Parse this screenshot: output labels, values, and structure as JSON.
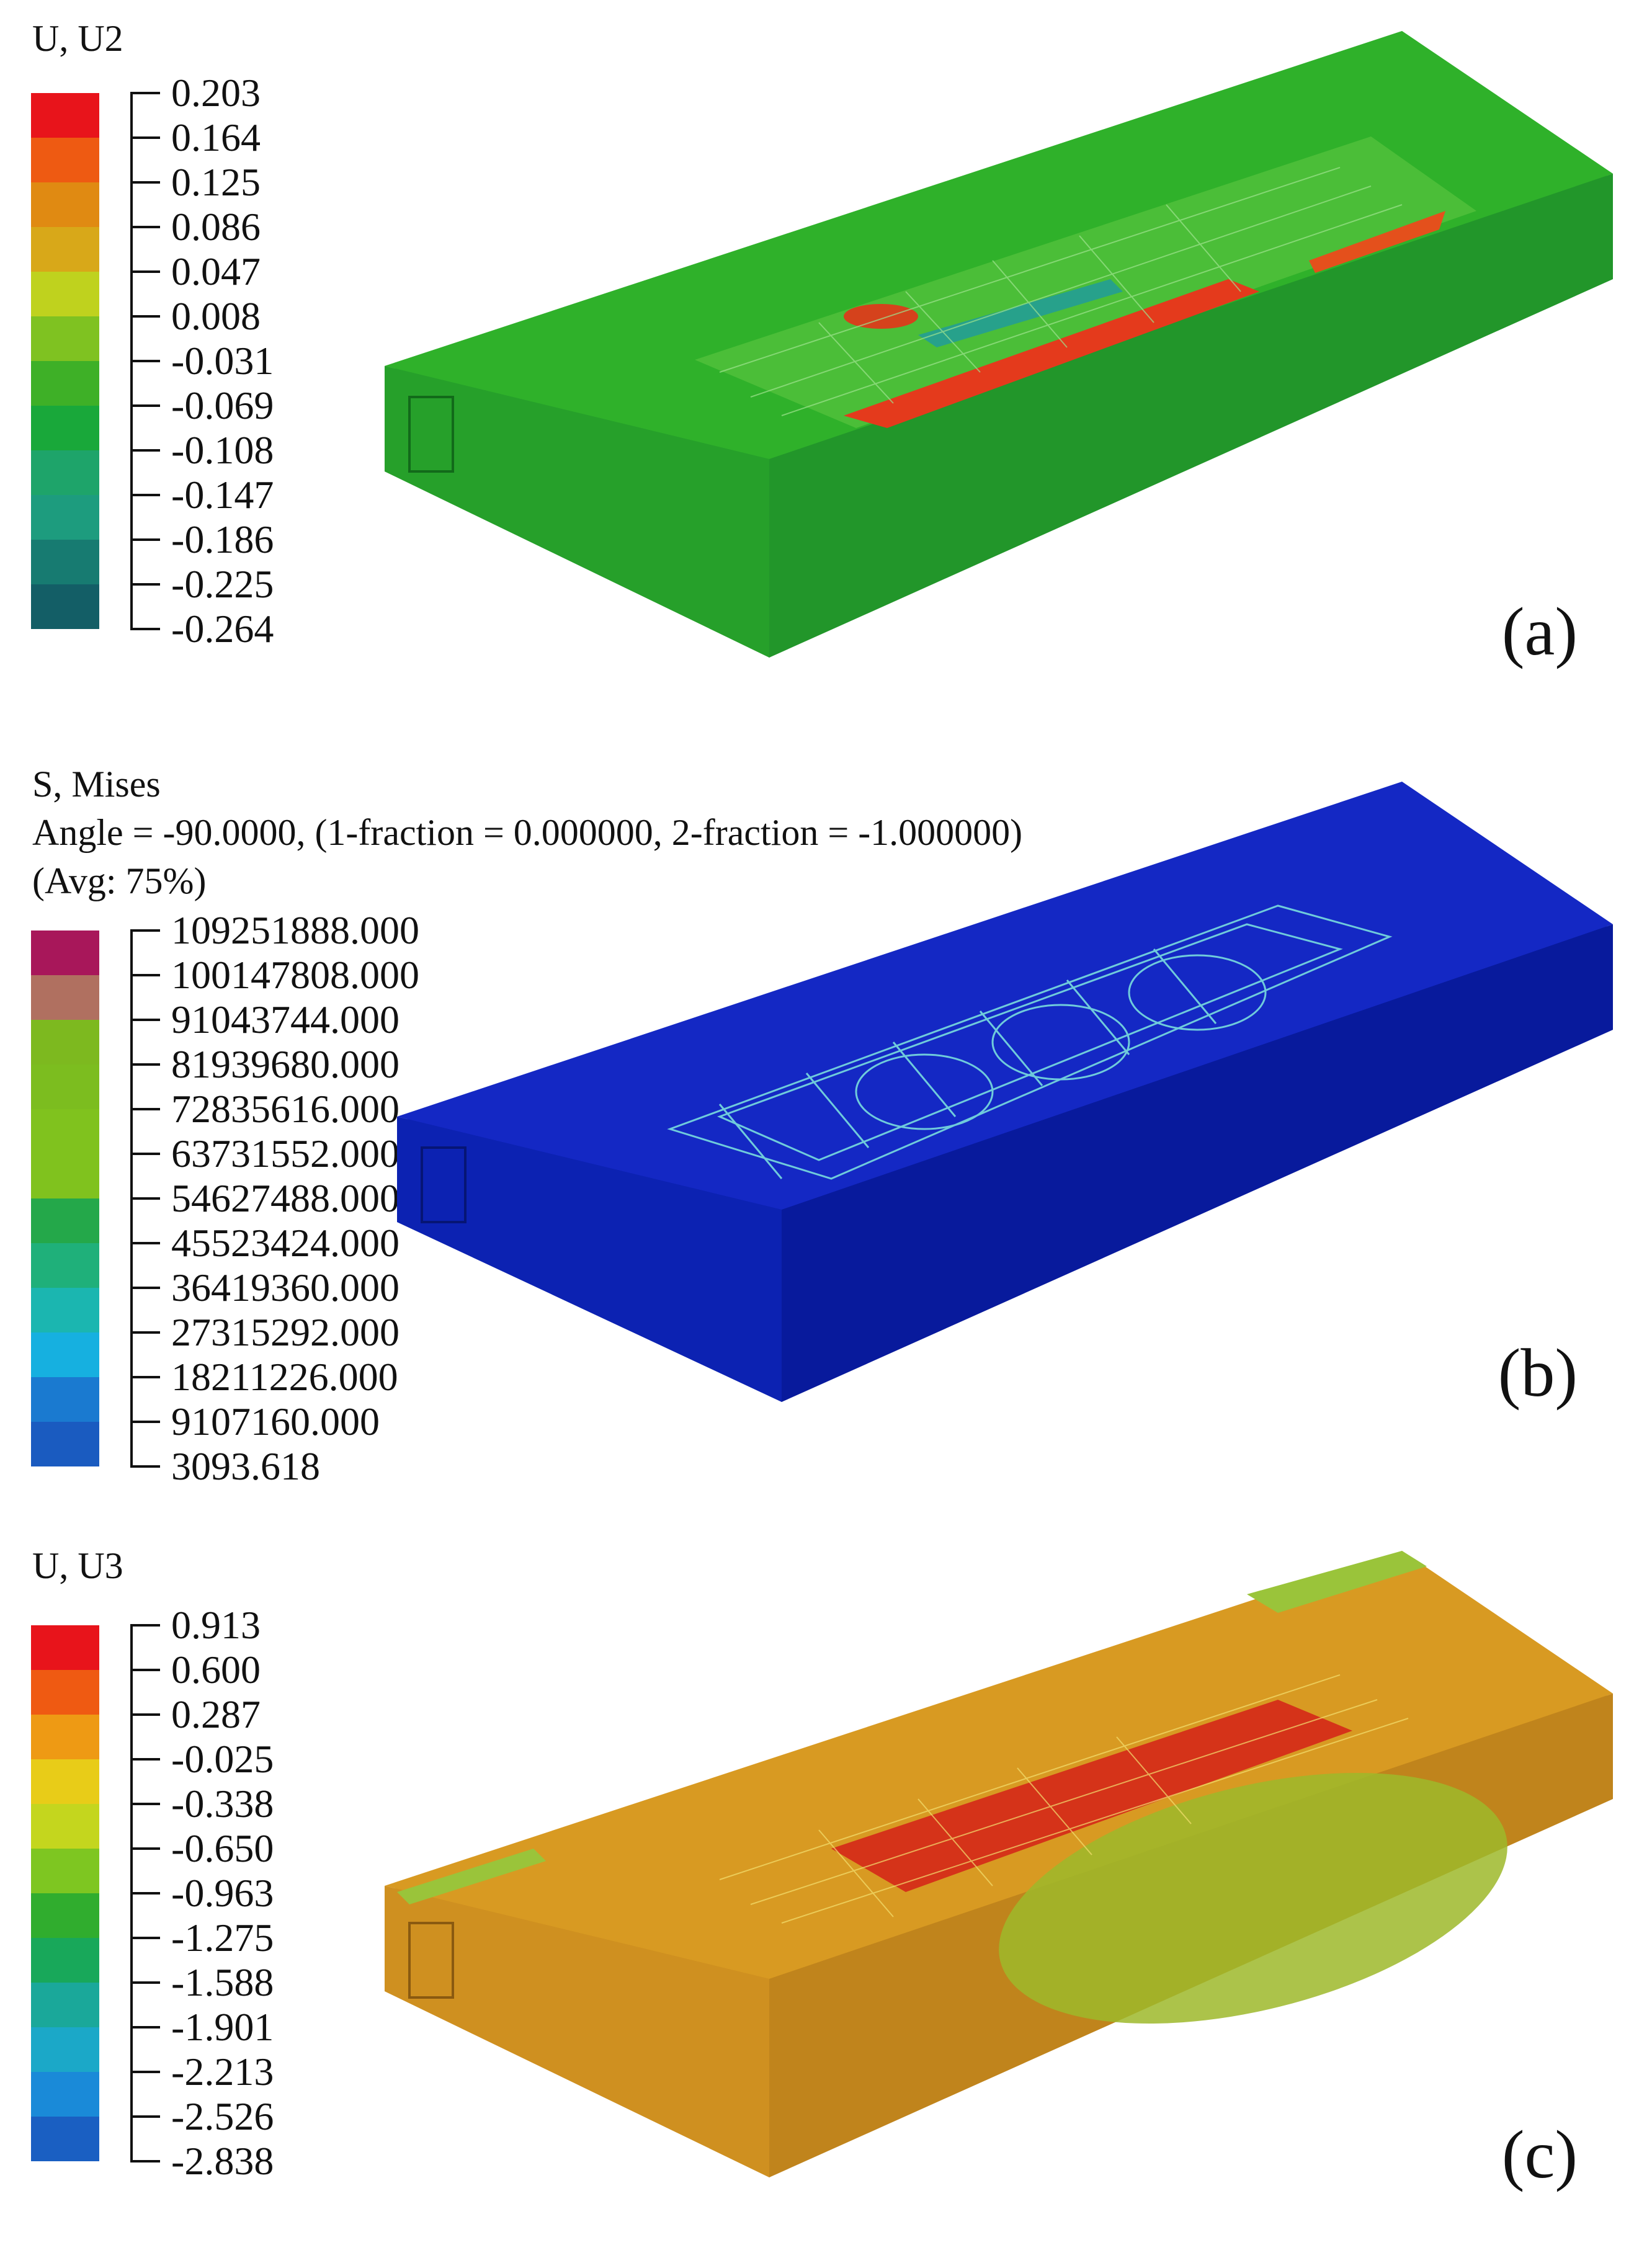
{
  "panels": [
    {
      "legend_title": [
        "U, U2"
      ],
      "values": [
        "0.203",
        "0.164",
        "0.125",
        "0.086",
        "0.047",
        "0.008",
        "-0.031",
        "-0.069",
        "-0.108",
        "-0.147",
        "-0.186",
        "-0.225",
        "-0.264"
      ],
      "colors": [
        "#e8141b",
        "#ee5a12",
        "#e08a12",
        "#d8a819",
        "#bfd21e",
        "#7fc221",
        "#3eb027",
        "#19a83a",
        "#1ea46a",
        "#1d9c7e",
        "#177b71",
        "#135e66",
        "#0f4f5e"
      ],
      "panel_label": "(a)"
    },
    {
      "legend_title": [
        "S, Mises",
        "Angle = -90.0000, (1-fraction = 0.000000, 2-fraction = -1.000000)",
        "(Avg: 75%)"
      ],
      "values": [
        "109251888.000",
        "100147808.000",
        "91043744.000",
        "81939680.000",
        "72835616.000",
        "63731552.000",
        "54627488.000",
        "45523424.000",
        "36419360.000",
        "27315292.000",
        "18211226.000",
        "9107160.000",
        "3093.618"
      ],
      "colors": [
        "#a8175a",
        "#b07060",
        "#7db91f",
        "#7cbd1f",
        "#80c21e",
        "#80c21e",
        "#24a84a",
        "#1fb07a",
        "#1bb6b0",
        "#16b0e0",
        "#1a7ad0",
        "#1a5bc0",
        "#13389a"
      ],
      "panel_label": "(b)"
    },
    {
      "legend_title": [
        "U, U3"
      ],
      "values": [
        "0.913",
        "0.600",
        "0.287",
        "-0.025",
        "-0.338",
        "-0.650",
        "-0.963",
        "-1.275",
        "-1.588",
        "-1.901",
        "-2.213",
        "-2.526",
        "-2.838"
      ],
      "colors": [
        "#e8141b",
        "#ef5a12",
        "#ee9a14",
        "#e8cc18",
        "#c4d61e",
        "#7ec621",
        "#30ad2e",
        "#18a85a",
        "#1aa89a",
        "#1ba8c8",
        "#1a8ad8",
        "#1a5fc2",
        "#1844a8"
      ],
      "panel_label": "(c)"
    }
  ]
}
